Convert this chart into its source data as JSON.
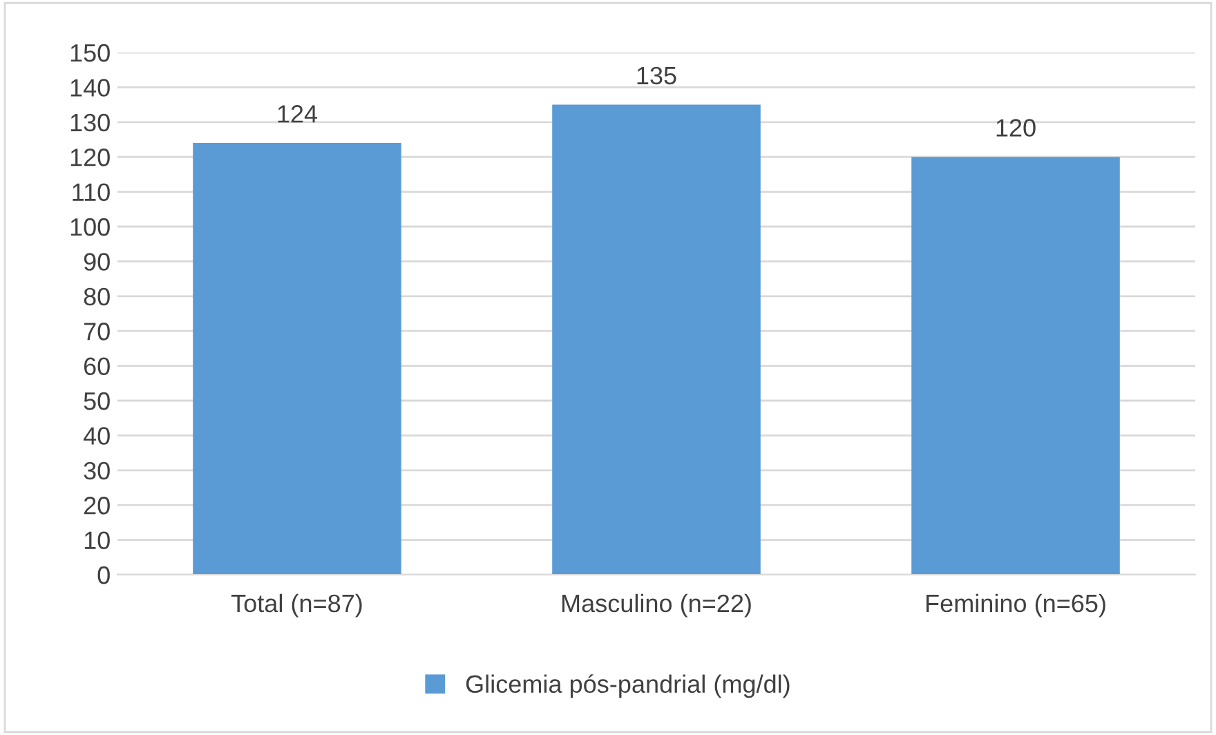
{
  "chart_data": {
    "type": "bar",
    "categories": [
      "Total (n=87)",
      "Masculino (n=22)",
      "Feminino (n=65)"
    ],
    "series": [
      {
        "name": "Glicemia pós-pandrial (mg/dl)",
        "color": "#5b9bd5",
        "values": [
          124,
          135,
          120
        ]
      }
    ],
    "ylim": [
      0,
      150
    ],
    "yticks": [
      0,
      10,
      20,
      30,
      40,
      50,
      60,
      70,
      80,
      90,
      100,
      110,
      120,
      130,
      140,
      150
    ],
    "grid": "y",
    "legend": "bottom",
    "data_labels": true
  }
}
